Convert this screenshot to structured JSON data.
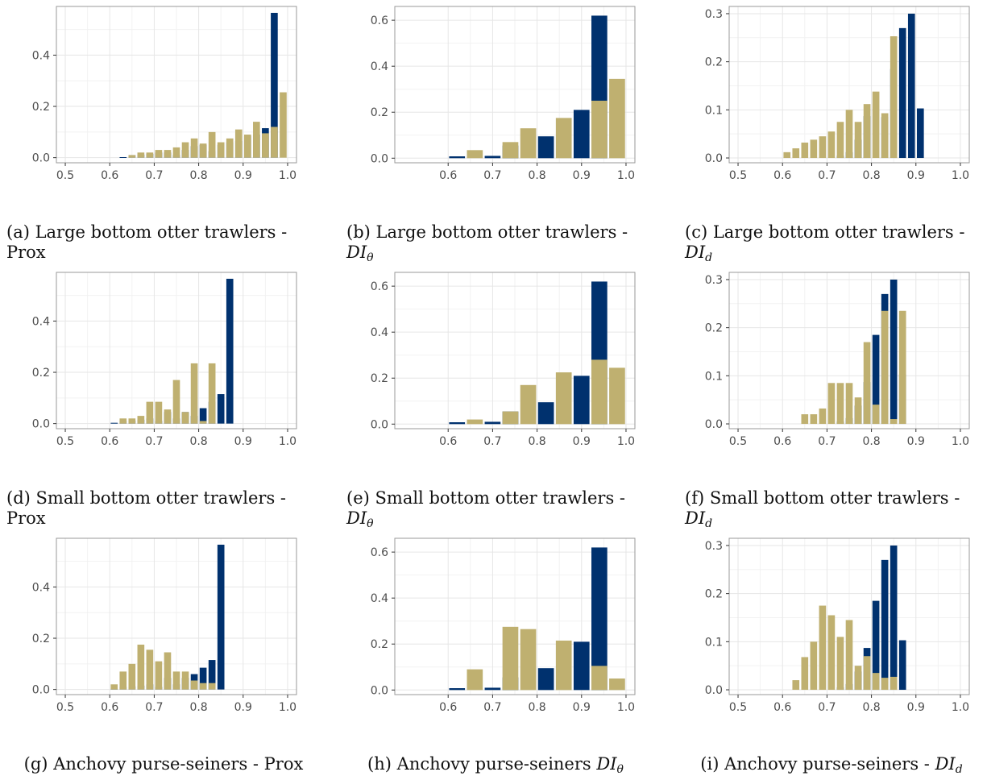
{
  "colors": {
    "baseline": "#00316E",
    "model": "#BFB070",
    "grid_minor": "#f2f2f2",
    "grid_major": "#e6e6e6",
    "frame": "#9a9a9a"
  },
  "charts": [
    {
      "caption": {
        "label": "(a)",
        "text": "Large bottom otter trawlers -",
        "line2": "Prox",
        "math": "",
        "sub": ""
      },
      "chart_data": {
        "type": "bar",
        "xlim": [
          0.48,
          1.02
        ],
        "ylim": [
          -0.02,
          0.59
        ],
        "x_ticks": [
          "0.5",
          "0.6",
          "0.7",
          "0.8",
          "0.9",
          "1.0"
        ],
        "y_ticks": [
          "0.0",
          "0.2",
          "0.4"
        ],
        "bin_width": 0.02,
        "series": [
          {
            "color": "baseline",
            "x": [
              0.61,
              0.63,
              0.65,
              0.67,
              0.69,
              0.71,
              0.73,
              0.75,
              0.77,
              0.79,
              0.81,
              0.83,
              0.85,
              0.87,
              0.89,
              0.91,
              0.93,
              0.95,
              0.97,
              0.99
            ],
            "values": [
              0,
              0.002,
              0.01,
              0.012,
              0.015,
              0.02,
              0.02,
              0.01,
              0.03,
              0.045,
              0.05,
              0.025,
              0.05,
              0.06,
              0.065,
              0.085,
              0.09,
              0.115,
              0.565,
              0
            ]
          },
          {
            "color": "model",
            "x": [
              0.61,
              0.63,
              0.65,
              0.67,
              0.69,
              0.71,
              0.73,
              0.75,
              0.77,
              0.79,
              0.81,
              0.83,
              0.85,
              0.87,
              0.89,
              0.91,
              0.93,
              0.95,
              0.97,
              0.99
            ],
            "values": [
              0,
              0,
              0.01,
              0.02,
              0.02,
              0.03,
              0.03,
              0.04,
              0.06,
              0.075,
              0.055,
              0.1,
              0.06,
              0.075,
              0.11,
              0.09,
              0.14,
              0.095,
              0.12,
              0.255
            ]
          }
        ]
      }
    },
    {
      "caption": {
        "label": "(b)",
        "text": "Large bottom otter trawlers -",
        "line2": "",
        "math": "DI",
        "sub": "θ"
      },
      "chart_data": {
        "type": "bar",
        "xlim": [
          0.48,
          1.02
        ],
        "ylim": [
          -0.02,
          0.66
        ],
        "x_ticks": [
          "0.6",
          "0.7",
          "0.8",
          "0.9",
          "1.0"
        ],
        "y_ticks": [
          "0.0",
          "0.2",
          "0.4",
          "0.6"
        ],
        "bin_width": 0.04,
        "series": [
          {
            "color": "baseline",
            "x": [
              0.62,
              0.66,
              0.7,
              0.74,
              0.78,
              0.82,
              0.86,
              0.9,
              0.94,
              0.98
            ],
            "values": [
              0.008,
              0,
              0.01,
              0.055,
              0,
              0.095,
              0,
              0.21,
              0.62,
              0
            ]
          },
          {
            "color": "model",
            "x": [
              0.62,
              0.66,
              0.7,
              0.74,
              0.78,
              0.82,
              0.86,
              0.9,
              0.94,
              0.98
            ],
            "values": [
              0,
              0.035,
              0,
              0.07,
              0.13,
              0,
              0.175,
              0,
              0.25,
              0.345
            ]
          }
        ]
      }
    },
    {
      "caption": {
        "label": "(c)",
        "text": "Large bottom otter trawlers -",
        "line2": "",
        "math": "DI",
        "sub": "d"
      },
      "chart_data": {
        "type": "bar",
        "xlim": [
          0.48,
          1.02
        ],
        "ylim": [
          -0.01,
          0.315
        ],
        "x_ticks": [
          "0.5",
          "0.6",
          "0.7",
          "0.8",
          "0.9",
          "1.0"
        ],
        "y_ticks": [
          "0.0",
          "0.1",
          "0.2",
          "0.3"
        ],
        "bin_width": 0.02,
        "series": [
          {
            "color": "baseline",
            "x": [
              0.61,
              0.63,
              0.65,
              0.67,
              0.69,
              0.71,
              0.73,
              0.75,
              0.77,
              0.79,
              0.81,
              0.83,
              0.85,
              0.87,
              0.89,
              0.91,
              0.93,
              0.95,
              0.97,
              0.99
            ],
            "values": [
              0,
              0,
              0,
              0,
              0,
              0,
              0.005,
              0.012,
              0.038,
              0.087,
              0,
              0.085,
              0.185,
              0.27,
              0.3,
              0.103,
              0,
              0,
              0,
              0
            ]
          },
          {
            "color": "model",
            "x": [
              0.61,
              0.63,
              0.65,
              0.67,
              0.69,
              0.71,
              0.73,
              0.75,
              0.77,
              0.79,
              0.81,
              0.83,
              0.85,
              0.87,
              0.89,
              0.91,
              0.93,
              0.95,
              0.97,
              0.99
            ],
            "values": [
              0.012,
              0.02,
              0.032,
              0.038,
              0.045,
              0.055,
              0.075,
              0.1,
              0.075,
              0.112,
              0.138,
              0.093,
              0.253,
              0,
              0,
              0,
              0,
              0,
              0,
              0
            ]
          }
        ]
      }
    },
    {
      "caption": {
        "label": "(d)",
        "text": "Small bottom otter trawlers -",
        "line2": "Prox",
        "math": "",
        "sub": ""
      },
      "chart_data": {
        "type": "bar",
        "xlim": [
          0.48,
          1.02
        ],
        "ylim": [
          -0.02,
          0.59
        ],
        "x_ticks": [
          "0.5",
          "0.6",
          "0.7",
          "0.8",
          "0.9",
          "1.0"
        ],
        "y_ticks": [
          "0.0",
          "0.2",
          "0.4"
        ],
        "bin_width": 0.02,
        "series": [
          {
            "color": "baseline",
            "x": [
              0.61,
              0.63,
              0.65,
              0.67,
              0.69,
              0.71,
              0.73,
              0.75,
              0.77,
              0.79,
              0.81,
              0.83,
              0.85,
              0.87,
              0.89,
              0.91,
              0.93,
              0.95,
              0.97,
              0.99
            ],
            "values": [
              0.003,
              0.01,
              0.012,
              0.015,
              0.02,
              0.01,
              0.045,
              0.02,
              0.045,
              0.03,
              0.06,
              0.085,
              0.115,
              0.565,
              0,
              0,
              0,
              0,
              0,
              0
            ]
          },
          {
            "color": "model",
            "x": [
              0.61,
              0.63,
              0.65,
              0.67,
              0.69,
              0.71,
              0.73,
              0.75,
              0.77,
              0.79,
              0.81,
              0.83,
              0.85,
              0.87,
              0.89,
              0.91,
              0.93,
              0.95,
              0.97,
              0.99
            ],
            "values": [
              0,
              0.02,
              0.02,
              0.03,
              0.085,
              0.085,
              0.055,
              0.17,
              0.045,
              0.235,
              0.01,
              0.235,
              0,
              0,
              0,
              0,
              0,
              0,
              0,
              0
            ]
          }
        ]
      }
    },
    {
      "caption": {
        "label": "(e)",
        "text": "Small bottom otter trawlers -",
        "line2": "",
        "math": "DI",
        "sub": "θ"
      },
      "chart_data": {
        "type": "bar",
        "xlim": [
          0.48,
          1.02
        ],
        "ylim": [
          -0.02,
          0.66
        ],
        "x_ticks": [
          "0.6",
          "0.7",
          "0.8",
          "0.9",
          "1.0"
        ],
        "y_ticks": [
          "0.0",
          "0.2",
          "0.4",
          "0.6"
        ],
        "bin_width": 0.04,
        "series": [
          {
            "color": "baseline",
            "x": [
              0.62,
              0.66,
              0.7,
              0.74,
              0.78,
              0.82,
              0.86,
              0.9,
              0.94,
              0.98
            ],
            "values": [
              0.008,
              0,
              0.01,
              0.055,
              0,
              0.095,
              0,
              0.21,
              0.62,
              0
            ]
          },
          {
            "color": "model",
            "x": [
              0.62,
              0.66,
              0.7,
              0.74,
              0.78,
              0.82,
              0.86,
              0.9,
              0.94,
              0.98
            ],
            "values": [
              0,
              0.02,
              0,
              0.055,
              0.17,
              0,
              0.225,
              0,
              0.28,
              0.245
            ]
          }
        ]
      }
    },
    {
      "caption": {
        "label": "(f)",
        "text": "Small bottom otter trawlers -",
        "line2": "",
        "math": "DI",
        "sub": "d"
      },
      "chart_data": {
        "type": "bar",
        "xlim": [
          0.48,
          1.02
        ],
        "ylim": [
          -0.01,
          0.315
        ],
        "x_ticks": [
          "0.5",
          "0.6",
          "0.7",
          "0.8",
          "0.9",
          "1.0"
        ],
        "y_ticks": [
          "0.0",
          "0.1",
          "0.2",
          "0.3"
        ],
        "bin_width": 0.02,
        "series": [
          {
            "color": "baseline",
            "x": [
              0.61,
              0.63,
              0.65,
              0.67,
              0.69,
              0.71,
              0.73,
              0.75,
              0.77,
              0.79,
              0.81,
              0.83,
              0.85,
              0.87,
              0.89,
              0.91,
              0.93,
              0.95,
              0.97,
              0.99
            ],
            "values": [
              0,
              0,
              0,
              0,
              0,
              0,
              0.005,
              0.012,
              0.038,
              0.087,
              0.185,
              0.27,
              0.3,
              0.103,
              0,
              0,
              0,
              0,
              0,
              0
            ]
          },
          {
            "color": "model",
            "x": [
              0.61,
              0.63,
              0.65,
              0.67,
              0.69,
              0.71,
              0.73,
              0.75,
              0.77,
              0.79,
              0.81,
              0.83,
              0.85,
              0.87,
              0.89,
              0.91,
              0.93,
              0.95,
              0.97,
              0.99
            ],
            "values": [
              0,
              0,
              0.02,
              0.02,
              0.032,
              0.085,
              0.085,
              0.085,
              0.055,
              0.17,
              0.04,
              0.235,
              0.01,
              0.235,
              0,
              0,
              0,
              0,
              0,
              0
            ]
          }
        ]
      }
    },
    {
      "caption": {
        "label": "(g)",
        "text": "Anchovy purse-seiners - Prox",
        "line2": "",
        "math": "",
        "sub": ""
      },
      "chart_data": {
        "type": "bar",
        "xlim": [
          0.48,
          1.02
        ],
        "ylim": [
          -0.02,
          0.59
        ],
        "x_ticks": [
          "0.5",
          "0.6",
          "0.7",
          "0.8",
          "0.9",
          "1.0"
        ],
        "y_ticks": [
          "0.0",
          "0.2",
          "0.4"
        ],
        "bin_width": 0.02,
        "series": [
          {
            "color": "baseline",
            "x": [
              0.61,
              0.63,
              0.65,
              0.67,
              0.69,
              0.71,
              0.73,
              0.75,
              0.77,
              0.79,
              0.81,
              0.83,
              0.85,
              0.87,
              0.89,
              0.91,
              0.93,
              0.95,
              0.97,
              0.99
            ],
            "values": [
              0.003,
              0.01,
              0.012,
              0.015,
              0.02,
              0.01,
              0.045,
              0.02,
              0.045,
              0.06,
              0.085,
              0.115,
              0.565,
              0,
              0,
              0,
              0,
              0,
              0,
              0
            ]
          },
          {
            "color": "model",
            "x": [
              0.61,
              0.63,
              0.65,
              0.67,
              0.69,
              0.71,
              0.73,
              0.75,
              0.77,
              0.79,
              0.81,
              0.83,
              0.85,
              0.87,
              0.89,
              0.91,
              0.93,
              0.95,
              0.97,
              0.99
            ],
            "values": [
              0.02,
              0.07,
              0.1,
              0.175,
              0.155,
              0.11,
              0.145,
              0.07,
              0.07,
              0.035,
              0.025,
              0.025,
              0,
              0,
              0,
              0,
              0,
              0,
              0,
              0
            ]
          }
        ]
      }
    },
    {
      "caption": {
        "label": "(h)",
        "text": "Anchovy purse-seiners",
        "line2": "",
        "math": "DI",
        "sub": "θ"
      },
      "chart_data": {
        "type": "bar",
        "xlim": [
          0.48,
          1.02
        ],
        "ylim": [
          -0.02,
          0.66
        ],
        "x_ticks": [
          "0.6",
          "0.7",
          "0.8",
          "0.9",
          "1.0"
        ],
        "y_ticks": [
          "0.0",
          "0.2",
          "0.4",
          "0.6"
        ],
        "bin_width": 0.04,
        "series": [
          {
            "color": "baseline",
            "x": [
              0.62,
              0.66,
              0.7,
              0.74,
              0.78,
              0.82,
              0.86,
              0.9,
              0.94,
              0.98
            ],
            "values": [
              0.008,
              0,
              0.01,
              0.055,
              0,
              0.095,
              0,
              0.21,
              0.62,
              0
            ]
          },
          {
            "color": "model",
            "x": [
              0.62,
              0.66,
              0.7,
              0.74,
              0.78,
              0.82,
              0.86,
              0.9,
              0.94,
              0.98
            ],
            "values": [
              0,
              0.09,
              0,
              0.275,
              0.265,
              0,
              0.215,
              0,
              0.105,
              0.05
            ]
          }
        ]
      }
    },
    {
      "caption": {
        "label": "(i)",
        "text": "Anchovy purse-seiners -",
        "line2": "",
        "math": "DI",
        "sub": "d"
      },
      "chart_data": {
        "type": "bar",
        "xlim": [
          0.48,
          1.02
        ],
        "ylim": [
          -0.01,
          0.315
        ],
        "x_ticks": [
          "0.5",
          "0.6",
          "0.7",
          "0.8",
          "0.9",
          "1.0"
        ],
        "y_ticks": [
          "0.0",
          "0.1",
          "0.2",
          "0.3"
        ],
        "bin_width": 0.02,
        "series": [
          {
            "color": "baseline",
            "x": [
              0.61,
              0.63,
              0.65,
              0.67,
              0.69,
              0.71,
              0.73,
              0.75,
              0.77,
              0.79,
              0.81,
              0.83,
              0.85,
              0.87,
              0.89,
              0.91,
              0.93,
              0.95,
              0.97,
              0.99
            ],
            "values": [
              0,
              0,
              0,
              0,
              0,
              0,
              0.005,
              0.012,
              0.038,
              0.087,
              0.185,
              0.27,
              0.3,
              0.103,
              0,
              0,
              0,
              0,
              0,
              0
            ]
          },
          {
            "color": "model",
            "x": [
              0.61,
              0.63,
              0.65,
              0.67,
              0.69,
              0.71,
              0.73,
              0.75,
              0.77,
              0.79,
              0.81,
              0.83,
              0.85,
              0.87,
              0.89,
              0.91,
              0.93,
              0.95,
              0.97,
              0.99
            ],
            "values": [
              0,
              0.02,
              0.068,
              0.1,
              0.175,
              0.155,
              0.11,
              0.145,
              0.05,
              0.07,
              0.035,
              0.025,
              0.027,
              0,
              0,
              0,
              0,
              0,
              0,
              0
            ]
          }
        ]
      }
    }
  ]
}
